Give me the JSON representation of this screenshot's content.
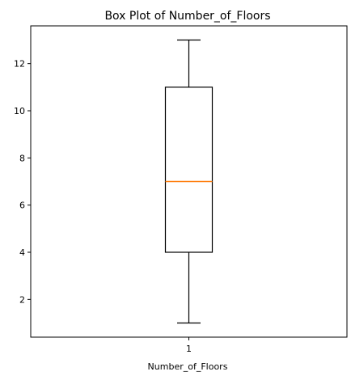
{
  "chart_data": {
    "type": "box",
    "title": "Box Plot of Number_of_Floors",
    "xlabel": "Number_of_Floors",
    "ylabel": "",
    "ylim": [
      0.4,
      13.6
    ],
    "categories": [
      "1"
    ],
    "yticks": [
      2,
      4,
      6,
      8,
      10,
      12
    ],
    "boxes": [
      {
        "category": "1",
        "whisker_low": 1,
        "q1": 4,
        "median": 7,
        "q3": 11,
        "whisker_high": 13
      }
    ],
    "median_color": "#ff7f0e",
    "box_color": "#000000",
    "grid": false
  }
}
